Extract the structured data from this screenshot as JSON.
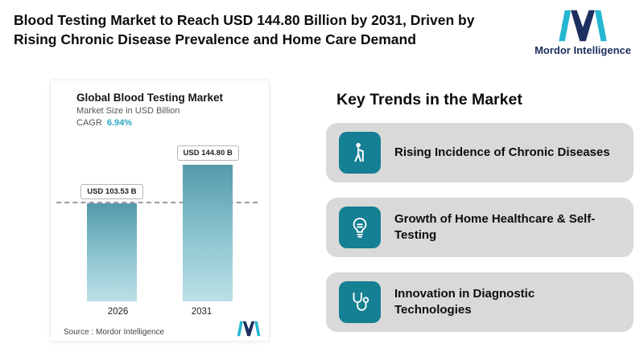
{
  "header": {
    "title": "Blood Testing Market to Reach USD 144.80 Billion by 2031, Driven by Rising Chronic Disease Prevalence and Home Care Demand"
  },
  "brand": {
    "name": "Mordor Intelligence"
  },
  "chart": {
    "title": "Global Blood Testing Market",
    "subtitle": "Market Size in USD Billion",
    "cagr_label": "CAGR",
    "cagr_value": "6.94%",
    "source": "Source :  Mordor Intelligence"
  },
  "chart_data": {
    "type": "bar",
    "title": "Global Blood Testing Market",
    "ylabel": "Market Size in USD Billion",
    "categories": [
      "2026",
      "2031"
    ],
    "values": [
      103.53,
      144.8
    ],
    "value_labels": [
      "USD 103.53 B",
      "USD 144.80 B"
    ],
    "cagr": "6.94%",
    "ylim": [
      0,
      160
    ],
    "grid": false,
    "reference_line_at": 103.53,
    "legend": "none"
  },
  "trends": {
    "heading": "Key Trends in the Market",
    "items": [
      {
        "icon": "person-with-cane-icon",
        "label": "Rising Incidence of Chronic Diseases"
      },
      {
        "icon": "lightbulb-icon",
        "label": "Growth of Home Healthcare & Self-Testing"
      },
      {
        "icon": "stethoscope-icon",
        "label": "Innovation in Diagnostic Technologies"
      }
    ]
  },
  "colors": {
    "accent_teal": "#157f93",
    "cagr_teal": "#2aa9c1",
    "bar_gradient_top": "#549aab",
    "bar_gradient_bottom": "#bce0e6",
    "trend_card_gray": "#d9d9d9",
    "brand_navy": "#1d2f5f",
    "brand_teal": "#25b6d2"
  }
}
